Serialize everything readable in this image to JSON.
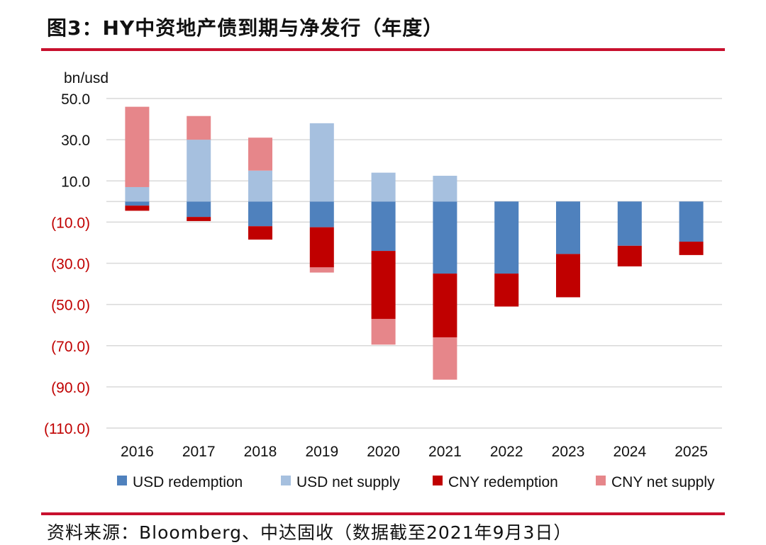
{
  "header": {
    "title": "图3：HY中资地产债到期与净发行（年度）"
  },
  "footer": {
    "source": "资料来源：Bloomberg、中达固收（数据截至2021年9月3日）"
  },
  "chart_data": {
    "type": "bar",
    "stacked": true,
    "ylabel": "bn/usd",
    "ylim": [
      -110,
      50
    ],
    "yticks": [
      50,
      30,
      10,
      -10,
      -30,
      -50,
      -70,
      -90,
      -110
    ],
    "ytick_labels": [
      "50.0",
      "30.0",
      "10.0",
      "(10.0)",
      "(30.0)",
      "(50.0)",
      "(70.0)",
      "(90.0)",
      "(110.0)"
    ],
    "categories": [
      "2016",
      "2017",
      "2018",
      "2019",
      "2020",
      "2021",
      "2022",
      "2023",
      "2024",
      "2025"
    ],
    "series": [
      {
        "name": "USD redemption",
        "color": "#4f81bd",
        "values": [
          -2,
          -7.5,
          -12,
          -12.5,
          -24,
          -35,
          -35,
          -25.5,
          -21.5,
          -19.5
        ]
      },
      {
        "name": "USD net supply",
        "color": "#a6c0df",
        "values": [
          7,
          30,
          15,
          38,
          14,
          12.5,
          0,
          0,
          0,
          0
        ]
      },
      {
        "name": "CNY redemption",
        "color": "#c00000",
        "values": [
          -2.5,
          -2,
          -6.5,
          -19.5,
          -33,
          -31,
          -16,
          -21,
          -10,
          -6.5
        ]
      },
      {
        "name": "CNY net supply",
        "color": "#e6868a",
        "values": [
          39,
          11.5,
          16,
          -2.5,
          -12.5,
          -20.5,
          0,
          0,
          0,
          0
        ]
      }
    ],
    "legend_position": "bottom",
    "grid": true
  }
}
